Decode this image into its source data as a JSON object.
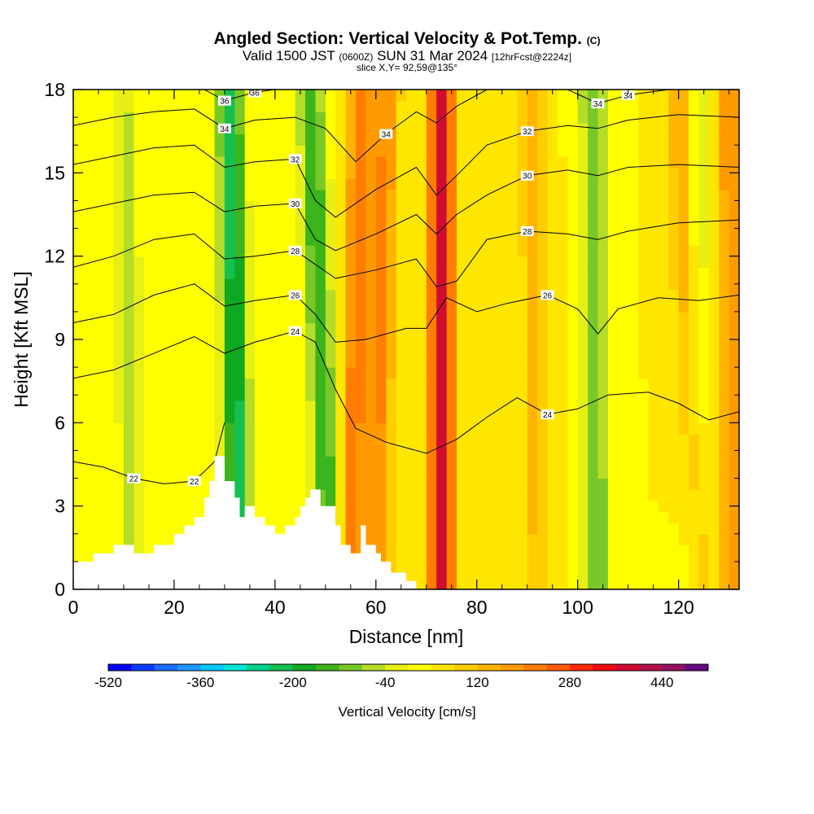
{
  "header": {
    "title_main": "Angled Section: Vertical Velocity & Pot.Temp.",
    "title_units": "(C)",
    "valid_prefix": "Valid 1500 JST",
    "valid_zulu": "(0600Z)",
    "valid_date": "SUN 31 Mar 2024",
    "valid_fcst": "[12hrFcst@2224z]",
    "slice_info": "slice X,Y= 92,59@135°"
  },
  "chart_data": {
    "type": "heatmap",
    "title": "Angled Section: Vertical Velocity & Pot.Temp. (C)",
    "xlabel": "Distance [nm]",
    "ylabel": "Height [Kft MSL]",
    "xlim": [
      0,
      132
    ],
    "ylim": [
      0,
      18
    ],
    "x_ticks": [
      0,
      20,
      40,
      60,
      80,
      100,
      120
    ],
    "y_ticks": [
      0,
      3,
      6,
      9,
      12,
      15,
      18
    ],
    "colorbar": {
      "title": "Vertical Velocity [cm/s]",
      "tick_labels": [
        "-520",
        "-360",
        "-200",
        "-40",
        "120",
        "280",
        "440"
      ],
      "levels": [
        -520,
        -480,
        -440,
        -400,
        -360,
        -320,
        -280,
        -240,
        -200,
        -160,
        -120,
        -80,
        -40,
        0,
        40,
        80,
        120,
        160,
        200,
        240,
        280,
        320,
        360,
        400,
        440,
        480
      ],
      "colors": [
        "#0000ff",
        "#0a3cff",
        "#1c6cff",
        "#1e96ff",
        "#00c8ff",
        "#00e6d2",
        "#00d28c",
        "#14c050",
        "#10a820",
        "#3cb41c",
        "#78c828",
        "#b4dc28",
        "#e6f014",
        "#ffff00",
        "#ffe600",
        "#ffcd00",
        "#ffb400",
        "#ff9b00",
        "#ff7d00",
        "#ff5a00",
        "#ff2800",
        "#f00a14",
        "#d20a32",
        "#b4104b",
        "#960f64",
        "#640a82"
      ]
    },
    "updraft_bands": [
      {
        "top_x": 57,
        "bottom_x": 55,
        "strength": 180
      },
      {
        "top_x": 62,
        "bottom_x": 60,
        "strength": 160
      },
      {
        "top_x": 73,
        "bottom_x": 73,
        "strength": 330
      },
      {
        "top_x": 91,
        "bottom_x": 92,
        "strength": 90
      },
      {
        "top_x": 120,
        "bottom_x": 124,
        "strength": 120
      },
      {
        "top_x": 130,
        "bottom_x": 131,
        "strength": 150
      }
    ],
    "downdraft_bands": [
      {
        "top_x": 10,
        "bottom_x": 12,
        "strength": -90
      },
      {
        "top_x": 31,
        "bottom_x": 33,
        "strength": -260
      },
      {
        "top_x": 47,
        "bottom_x": 51,
        "strength": -200
      },
      {
        "top_x": 103,
        "bottom_x": 104,
        "strength": -150
      },
      {
        "top_x": 124,
        "bottom_x": 123,
        "strength": -80
      }
    ],
    "terrain": {
      "x": [
        0,
        4,
        4,
        8,
        8,
        12,
        12,
        16,
        16,
        20,
        20,
        22,
        22,
        24,
        24,
        26,
        26,
        27,
        27,
        28,
        28,
        30,
        30,
        32,
        32,
        33,
        33,
        34,
        34,
        36,
        36,
        38,
        38,
        40,
        40,
        42,
        42,
        44,
        44,
        45,
        45,
        46,
        46,
        47,
        47,
        49,
        49,
        52,
        52,
        53,
        53,
        55,
        55,
        57,
        57,
        58,
        58,
        60,
        60,
        61,
        61,
        63,
        63,
        66,
        66,
        68,
        68,
        72,
        72,
        132
      ],
      "heights": [
        1.0,
        1.0,
        1.3,
        1.3,
        1.6,
        1.6,
        1.3,
        1.3,
        1.6,
        1.6,
        2.0,
        2.0,
        2.3,
        2.3,
        2.6,
        2.6,
        3.3,
        3.3,
        3.9,
        3.9,
        4.8,
        4.8,
        3.9,
        3.9,
        3.3,
        3.3,
        2.6,
        2.6,
        3.0,
        3.0,
        2.6,
        2.6,
        2.3,
        2.3,
        2.0,
        2.0,
        2.3,
        2.3,
        2.6,
        2.6,
        3.0,
        3.0,
        3.3,
        3.3,
        3.6,
        3.6,
        3.0,
        3.0,
        2.3,
        2.3,
        1.6,
        1.6,
        1.3,
        1.3,
        2.3,
        2.3,
        1.6,
        1.6,
        1.3,
        1.3,
        1.0,
        1.0,
        0.6,
        0.6,
        0.3,
        0.3,
        0.0,
        0.0,
        0.0,
        0.0
      ]
    },
    "theta_contours": [
      {
        "label": "22",
        "points": [
          [
            0,
            4.6
          ],
          [
            6,
            4.4
          ],
          [
            12,
            4.0
          ],
          [
            18,
            3.8
          ],
          [
            24,
            3.9
          ],
          [
            28,
            4.6
          ],
          [
            30,
            6.0
          ]
        ]
      },
      {
        "label": "24",
        "points": [
          [
            0,
            7.6
          ],
          [
            8,
            7.9
          ],
          [
            16,
            8.5
          ],
          [
            24,
            9.1
          ],
          [
            30,
            8.5
          ],
          [
            36,
            8.9
          ],
          [
            44,
            9.3
          ],
          [
            48,
            8.9
          ],
          [
            52,
            7.2
          ],
          [
            56,
            5.8
          ],
          [
            62,
            5.3
          ],
          [
            70,
            4.9
          ],
          [
            76,
            5.4
          ],
          [
            82,
            6.2
          ],
          [
            88,
            6.9
          ],
          [
            94,
            6.3
          ],
          [
            100,
            6.5
          ],
          [
            106,
            7.0
          ],
          [
            114,
            7.1
          ],
          [
            120,
            6.7
          ],
          [
            126,
            6.1
          ],
          [
            132,
            6.4
          ]
        ]
      },
      {
        "label": "26",
        "points": [
          [
            0,
            9.6
          ],
          [
            8,
            9.9
          ],
          [
            16,
            10.6
          ],
          [
            24,
            11.0
          ],
          [
            30,
            10.2
          ],
          [
            36,
            10.4
          ],
          [
            44,
            10.6
          ],
          [
            48,
            9.9
          ],
          [
            52,
            8.9
          ],
          [
            58,
            9.0
          ],
          [
            66,
            9.4
          ],
          [
            70,
            9.4
          ],
          [
            74,
            10.5
          ],
          [
            80,
            10.0
          ],
          [
            86,
            10.3
          ],
          [
            94,
            10.6
          ],
          [
            100,
            10.1
          ],
          [
            104,
            9.2
          ],
          [
            108,
            10.1
          ],
          [
            116,
            10.5
          ],
          [
            124,
            10.4
          ],
          [
            132,
            10.6
          ]
        ]
      },
      {
        "label": "28",
        "points": [
          [
            0,
            11.6
          ],
          [
            8,
            12.0
          ],
          [
            16,
            12.6
          ],
          [
            24,
            12.8
          ],
          [
            30,
            11.9
          ],
          [
            36,
            12.0
          ],
          [
            44,
            12.2
          ],
          [
            48,
            11.7
          ],
          [
            52,
            11.2
          ],
          [
            60,
            11.5
          ],
          [
            68,
            11.9
          ],
          [
            72,
            10.9
          ],
          [
            76,
            11.1
          ],
          [
            82,
            12.6
          ],
          [
            90,
            12.9
          ],
          [
            98,
            12.8
          ],
          [
            104,
            12.6
          ],
          [
            110,
            12.9
          ],
          [
            120,
            13.2
          ],
          [
            132,
            13.3
          ]
        ]
      },
      {
        "label": "30",
        "points": [
          [
            0,
            13.6
          ],
          [
            8,
            13.9
          ],
          [
            16,
            14.2
          ],
          [
            24,
            14.3
          ],
          [
            30,
            13.6
          ],
          [
            36,
            13.8
          ],
          [
            44,
            13.9
          ],
          [
            48,
            12.6
          ],
          [
            52,
            12.2
          ],
          [
            60,
            12.8
          ],
          [
            68,
            13.5
          ],
          [
            72,
            12.8
          ],
          [
            76,
            13.5
          ],
          [
            82,
            14.2
          ],
          [
            90,
            14.9
          ],
          [
            98,
            15.1
          ],
          [
            104,
            14.9
          ],
          [
            110,
            15.2
          ],
          [
            120,
            15.3
          ],
          [
            132,
            15.2
          ]
        ]
      },
      {
        "label": "32",
        "points": [
          [
            0,
            15.3
          ],
          [
            8,
            15.6
          ],
          [
            16,
            15.9
          ],
          [
            24,
            16.0
          ],
          [
            30,
            15.2
          ],
          [
            36,
            15.4
          ],
          [
            44,
            15.5
          ],
          [
            48,
            14.0
          ],
          [
            52,
            13.4
          ],
          [
            60,
            14.4
          ],
          [
            68,
            15.2
          ],
          [
            72,
            14.2
          ],
          [
            76,
            14.9
          ],
          [
            82,
            16.0
          ],
          [
            90,
            16.5
          ],
          [
            98,
            16.7
          ],
          [
            104,
            16.6
          ],
          [
            110,
            16.9
          ],
          [
            120,
            17.1
          ],
          [
            132,
            17.0
          ]
        ]
      },
      {
        "label": "34",
        "points": [
          [
            0,
            16.7
          ],
          [
            8,
            17.0
          ],
          [
            16,
            17.2
          ],
          [
            24,
            17.3
          ],
          [
            30,
            16.6
          ],
          [
            36,
            16.9
          ],
          [
            44,
            17.0
          ],
          [
            50,
            16.6
          ],
          [
            56,
            15.4
          ],
          [
            62,
            16.4
          ],
          [
            68,
            17.2
          ],
          [
            72,
            16.8
          ],
          [
            76,
            17.4
          ],
          [
            82,
            18.0
          ]
        ]
      },
      {
        "label": "36",
        "points": [
          [
            26,
            18.0
          ],
          [
            30,
            17.6
          ],
          [
            36,
            17.9
          ],
          [
            40,
            18.0
          ]
        ]
      },
      {
        "label": "34",
        "points": [
          [
            98,
            18.0
          ],
          [
            104,
            17.5
          ],
          [
            110,
            17.8
          ],
          [
            118,
            18.0
          ]
        ]
      }
    ]
  }
}
